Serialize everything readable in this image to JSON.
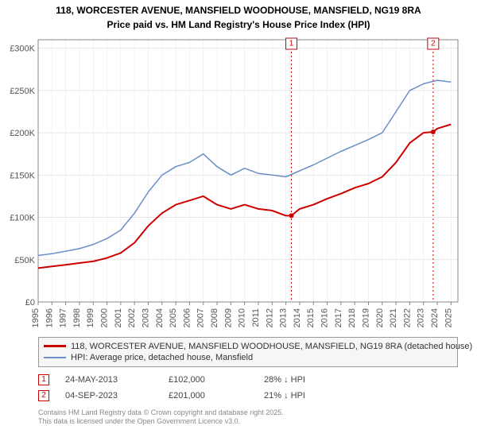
{
  "title_line1": "118, WORCESTER AVENUE, MANSFIELD WOODHOUSE, MANSFIELD, NG19 8RA",
  "title_line2": "Price paid vs. HM Land Registry's House Price Index (HPI)",
  "chart": {
    "type": "line",
    "background_color": "#ffffff",
    "plot_bg": "#ffffff",
    "grid_color": "#e6e6e6",
    "axis_color": "#888888",
    "x_years": [
      1995,
      1996,
      1997,
      1998,
      1999,
      2000,
      2001,
      2002,
      2003,
      2004,
      2005,
      2006,
      2007,
      2008,
      2009,
      2010,
      2011,
      2012,
      2013,
      2014,
      2015,
      2016,
      2017,
      2018,
      2019,
      2020,
      2021,
      2022,
      2023,
      2024,
      2025
    ],
    "y_ticks": [
      0,
      50000,
      100000,
      150000,
      200000,
      250000,
      300000
    ],
    "y_tick_labels": [
      "£0",
      "£50K",
      "£100K",
      "£150K",
      "£200K",
      "£250K",
      "£300K"
    ],
    "ylim": [
      0,
      310000
    ],
    "xlim": [
      1995,
      2025.5
    ],
    "series": [
      {
        "name": "price_paid",
        "label": "118, WORCESTER AVENUE, MANSFIELD WOODHOUSE, MANSFIELD, NG19 8RA (detached house)",
        "color": "#cc0000",
        "line_width": 2,
        "data": [
          [
            1995,
            40000
          ],
          [
            1996,
            42000
          ],
          [
            1997,
            44000
          ],
          [
            1998,
            46000
          ],
          [
            1999,
            48000
          ],
          [
            2000,
            52000
          ],
          [
            2001,
            58000
          ],
          [
            2002,
            70000
          ],
          [
            2003,
            90000
          ],
          [
            2004,
            105000
          ],
          [
            2005,
            115000
          ],
          [
            2006,
            120000
          ],
          [
            2007,
            125000
          ],
          [
            2008,
            115000
          ],
          [
            2009,
            110000
          ],
          [
            2010,
            115000
          ],
          [
            2011,
            110000
          ],
          [
            2012,
            108000
          ],
          [
            2013,
            102000
          ],
          [
            2013.4,
            102000
          ],
          [
            2014,
            110000
          ],
          [
            2015,
            115000
          ],
          [
            2016,
            122000
          ],
          [
            2017,
            128000
          ],
          [
            2018,
            135000
          ],
          [
            2019,
            140000
          ],
          [
            2020,
            148000
          ],
          [
            2021,
            165000
          ],
          [
            2022,
            188000
          ],
          [
            2023,
            200000
          ],
          [
            2023.7,
            201000
          ],
          [
            2024,
            205000
          ],
          [
            2025,
            210000
          ]
        ]
      },
      {
        "name": "hpi",
        "label": "HPI: Average price, detached house, Mansfield",
        "color": "#6a8fc7",
        "line_width": 1.5,
        "data": [
          [
            1995,
            55000
          ],
          [
            1996,
            57000
          ],
          [
            1997,
            60000
          ],
          [
            1998,
            63000
          ],
          [
            1999,
            68000
          ],
          [
            2000,
            75000
          ],
          [
            2001,
            85000
          ],
          [
            2002,
            105000
          ],
          [
            2003,
            130000
          ],
          [
            2004,
            150000
          ],
          [
            2005,
            160000
          ],
          [
            2006,
            165000
          ],
          [
            2007,
            175000
          ],
          [
            2008,
            160000
          ],
          [
            2009,
            150000
          ],
          [
            2010,
            158000
          ],
          [
            2011,
            152000
          ],
          [
            2012,
            150000
          ],
          [
            2013,
            148000
          ],
          [
            2014,
            155000
          ],
          [
            2015,
            162000
          ],
          [
            2016,
            170000
          ],
          [
            2017,
            178000
          ],
          [
            2018,
            185000
          ],
          [
            2019,
            192000
          ],
          [
            2020,
            200000
          ],
          [
            2021,
            225000
          ],
          [
            2022,
            250000
          ],
          [
            2023,
            258000
          ],
          [
            2024,
            262000
          ],
          [
            2025,
            260000
          ]
        ]
      }
    ],
    "markers": [
      {
        "id": "1",
        "x": 2013.4,
        "y": 102000,
        "line_color": "#cc0000"
      },
      {
        "id": "2",
        "x": 2023.7,
        "y": 201000,
        "line_color": "#cc0000"
      }
    ]
  },
  "legend": {
    "series1_label": "118, WORCESTER AVENUE, MANSFIELD WOODHOUSE, MANSFIELD, NG19 8RA (detached house)",
    "series1_color": "#cc0000",
    "series2_label": "HPI: Average price, detached house, Mansfield",
    "series2_color": "#6a8fc7"
  },
  "sales": [
    {
      "marker": "1",
      "date": "24-MAY-2013",
      "price": "£102,000",
      "diff": "28% ↓ HPI"
    },
    {
      "marker": "2",
      "date": "04-SEP-2023",
      "price": "£201,000",
      "diff": "21% ↓ HPI"
    }
  ],
  "footer_line1": "Contains HM Land Registry data © Crown copyright and database right 2025.",
  "footer_line2": "This data is licensed under the Open Government Licence v3.0."
}
